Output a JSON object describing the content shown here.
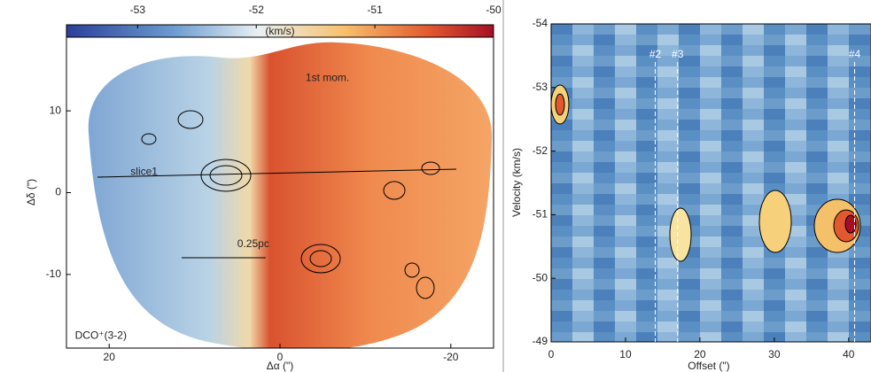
{
  "chart_data": [
    {
      "type": "map",
      "colorbar": {
        "label": "(km/s)",
        "lim": [
          -53.6,
          -50
        ],
        "ticks": [
          -53,
          -52,
          -51,
          -50
        ]
      },
      "xlabel": "Δα (\")",
      "ylabel": "Δδ (\")",
      "xlim": [
        25,
        -25
      ],
      "xticks": [
        20,
        0,
        -20
      ],
      "ylim": [
        -19,
        19
      ],
      "yticks": [
        10,
        0,
        -10
      ],
      "annotations": [
        {
          "text": "1st mom.",
          "x": -3,
          "y": 14
        },
        {
          "text": "slice1",
          "x": 17.5,
          "y": 2.5
        },
        {
          "text": "0.25pc",
          "x": 5,
          "y": -6.3
        },
        {
          "text": "DCO⁺(3-2)",
          "x": 24,
          "y": -17.5
        }
      ]
    },
    {
      "type": "pv",
      "xlabel": "Offset (\")",
      "ylabel": "Velocity (km/s)",
      "xlim": [
        0,
        43
      ],
      "xticks": [
        0,
        10,
        20,
        30,
        40
      ],
      "ylim": [
        -54,
        -49
      ],
      "yticks": [
        -54,
        -53,
        -52,
        -51,
        -50,
        -49
      ],
      "markers": [
        {
          "label": "#2",
          "x": 14
        },
        {
          "label": "#3",
          "x": 17
        },
        {
          "label": "#4",
          "x": 40.8
        }
      ]
    }
  ]
}
